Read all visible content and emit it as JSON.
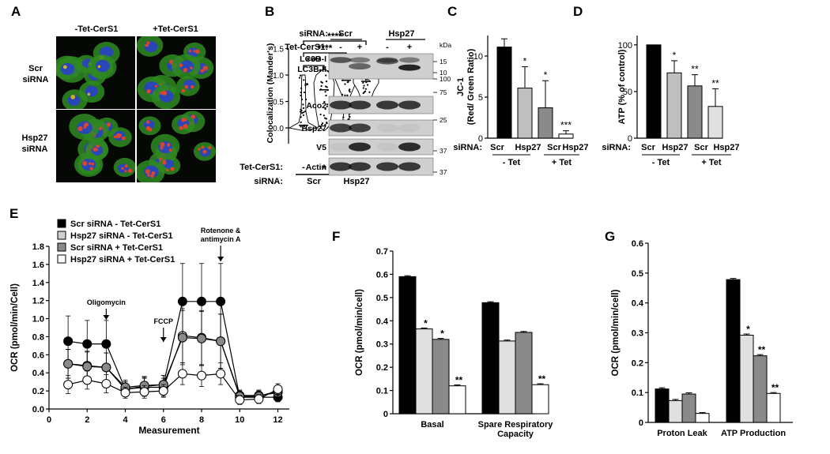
{
  "panel_letters": [
    "A",
    "B",
    "C",
    "D",
    "E",
    "F",
    "G"
  ],
  "panel_a": {
    "col_headers": [
      "-Tet-CerS1",
      "+Tet-CerS1"
    ],
    "row_labels": [
      [
        "Scr",
        "siRNA"
      ],
      [
        "Hsp27",
        "siRNA"
      ]
    ],
    "colors": {
      "green": "#2f8a22",
      "blue": "#2a40c8",
      "red": "#e0442a",
      "yellow": "#d6b522"
    },
    "violin": {
      "ylabel": "Colocalization (Mander's)",
      "yticks": [
        "0.0",
        "0.5",
        "1.0",
        "1.5"
      ],
      "ylim": [
        -0.3,
        1.5
      ],
      "tet_label": "Tet-CerS1:",
      "tet_signs": [
        "-",
        "+",
        "-",
        "+"
      ],
      "sirna_label": "siRNA:",
      "groups": [
        "Scr",
        "Hsp27"
      ],
      "significance": [
        "****",
        "****",
        "****"
      ],
      "medians": [
        0.05,
        0.72,
        0.9,
        0.88
      ]
    }
  },
  "panel_b": {
    "sirna_label": "siRNA:",
    "groups": [
      "Scr",
      "Hsp27"
    ],
    "tet_label": "Tet-CerS1:",
    "tet_signs": [
      "-",
      "+",
      "-",
      "+"
    ],
    "kda": "kDa",
    "bands": [
      "LC3B-I",
      "LC3B-II",
      "Aco2",
      "Hsp27",
      "V5",
      "Actin"
    ],
    "markers": [
      "15",
      "10",
      "100",
      "75",
      "25",
      "37",
      "37"
    ]
  },
  "chart_data": [
    {
      "id": "C",
      "type": "bar",
      "ylabel": [
        "JC-1",
        "(Red/ Green Ratio)"
      ],
      "ylim": [
        0,
        12.5
      ],
      "yticks": [
        0,
        5,
        10
      ],
      "categories": [
        "Scr",
        "Hsp27",
        "Scr",
        "Hsp27"
      ],
      "values": [
        11.1,
        6.1,
        3.7,
        0.5
      ],
      "errors": [
        1.0,
        2.6,
        3.3,
        0.4
      ],
      "colors": [
        "#000000",
        "#bfbfbf",
        "#8a8a8a",
        "#ffffff"
      ],
      "significance": [
        "",
        "*",
        "*",
        "***"
      ],
      "xprefix": "siRNA:",
      "groups": [
        "- Tet",
        "+ Tet"
      ]
    },
    {
      "id": "D",
      "type": "bar",
      "ylabel": [
        "ATP (% of control)"
      ],
      "ylim": [
        0,
        110
      ],
      "yticks": [
        0,
        50,
        100
      ],
      "categories": [
        "Scr",
        "Hsp27",
        "Scr",
        "Hsp27"
      ],
      "values": [
        100,
        70,
        56,
        34
      ],
      "errors": [
        0,
        13,
        12,
        19
      ],
      "colors": [
        "#000000",
        "#bfbfbf",
        "#8a8a8a",
        "#e0e0e0"
      ],
      "significance": [
        "",
        "*",
        "**",
        "**"
      ],
      "xprefix": "siRNA:",
      "groups": [
        "- Tet",
        "+ Tet"
      ]
    },
    {
      "id": "E",
      "type": "line",
      "xlabel": "Measurement",
      "ylabel": "OCR (pmol/min/Cell)",
      "xlim": [
        0,
        12.6
      ],
      "ylim": [
        0,
        1.8
      ],
      "xticks": [
        0,
        2,
        4,
        6,
        8,
        10,
        12
      ],
      "yticks": [
        "0.0",
        "0.2",
        "0.4",
        "0.6",
        "0.8",
        "1.0",
        "1.2",
        "1.4",
        "1.6",
        "1.8"
      ],
      "x": [
        1,
        2,
        3,
        4,
        5,
        6,
        7,
        8,
        9,
        10,
        11,
        12
      ],
      "series": [
        {
          "name": "Scr siRNA - Tet-CerS1",
          "fill": "#000000",
          "values": [
            0.75,
            0.72,
            0.72,
            0.22,
            0.25,
            0.27,
            1.19,
            1.19,
            1.19,
            0.13,
            0.13,
            0.13
          ],
          "errors": [
            0.28,
            0.26,
            0.26,
            0.08,
            0.1,
            0.1,
            0.42,
            0.42,
            0.42,
            0.05,
            0.05,
            0.05
          ]
        },
        {
          "name": "Hsp27 siRNA - Tet-CerS1",
          "fill": "#d0d0d0",
          "values": [
            0.5,
            0.48,
            0.46,
            0.22,
            0.24,
            0.24,
            0.81,
            0.79,
            0.75,
            0.15,
            0.15,
            0.18
          ],
          "errors": [
            0.16,
            0.16,
            0.16,
            0.08,
            0.1,
            0.1,
            0.3,
            0.3,
            0.3,
            0.06,
            0.06,
            0.06
          ]
        },
        {
          "name": "Scr siRNA + Tet-CerS1",
          "fill": "#8a8a8a",
          "values": [
            0.5,
            0.47,
            0.46,
            0.24,
            0.26,
            0.27,
            0.79,
            0.78,
            0.75,
            0.14,
            0.14,
            0.2
          ],
          "errors": [
            0.16,
            0.16,
            0.16,
            0.08,
            0.1,
            0.1,
            0.3,
            0.3,
            0.3,
            0.06,
            0.06,
            0.06
          ]
        },
        {
          "name": "Hsp27 siRNA + Tet-CerS1",
          "fill": "#ffffff",
          "values": [
            0.27,
            0.32,
            0.28,
            0.18,
            0.19,
            0.2,
            0.39,
            0.37,
            0.39,
            0.1,
            0.11,
            0.22
          ],
          "errors": [
            0.1,
            0.1,
            0.1,
            0.06,
            0.07,
            0.07,
            0.12,
            0.12,
            0.12,
            0.05,
            0.05,
            0.06
          ]
        }
      ],
      "annotations": [
        {
          "lines": [
            "Oligomycin"
          ],
          "x": 3
        },
        {
          "lines": [
            "FCCP"
          ],
          "x": 6
        },
        {
          "lines": [
            "Rotenone &",
            "antimycin A"
          ],
          "x": 9
        }
      ]
    },
    {
      "id": "F",
      "type": "bar",
      "ylabel": "OCR (pmol/min/cell)",
      "ylim": [
        0,
        0.7
      ],
      "yticks": [
        "0",
        "0.1",
        "0.2",
        "0.3",
        "0.4",
        "0.5",
        "0.6",
        "0.7"
      ],
      "categories": [
        [
          "Basal"
        ],
        [
          "Spare Respiratory",
          "Capacity"
        ]
      ],
      "series_values": [
        [
          0.59,
          0.365,
          0.32,
          0.12
        ],
        [
          0.478,
          0.313,
          0.35,
          0.125
        ]
      ],
      "series_errors": [
        [
          0.004,
          0.004,
          0.004,
          0.004
        ],
        [
          0.004,
          0.004,
          0.004,
          0.004
        ]
      ],
      "colors": [
        "#000000",
        "#e0e0e0",
        "#8a8a8a",
        "#ffffff"
      ],
      "significance": [
        [
          "",
          "*",
          "*",
          "**"
        ],
        [
          "",
          "",
          "",
          "**"
        ]
      ]
    },
    {
      "id": "G",
      "type": "bar",
      "ylabel": "OCR (pmol/min/cell)",
      "ylim": [
        0,
        0.6
      ],
      "yticks": [
        "0",
        "0.1",
        "0.2",
        "0.3",
        "0.4",
        "0.5",
        "0.6"
      ],
      "categories": [
        [
          "Proton Leak"
        ],
        [
          "ATP Production"
        ]
      ],
      "series_values": [
        [
          0.112,
          0.073,
          0.095,
          0.03
        ],
        [
          0.478,
          0.292,
          0.223,
          0.097
        ]
      ],
      "series_errors": [
        [
          0.004,
          0.004,
          0.004,
          0.003
        ],
        [
          0.004,
          0.004,
          0.004,
          0.003
        ]
      ],
      "colors": [
        "#000000",
        "#e0e0e0",
        "#8a8a8a",
        "#ffffff"
      ],
      "significance": [
        [
          "",
          "",
          "",
          ""
        ],
        [
          "",
          "*",
          "**",
          "**"
        ]
      ]
    }
  ]
}
